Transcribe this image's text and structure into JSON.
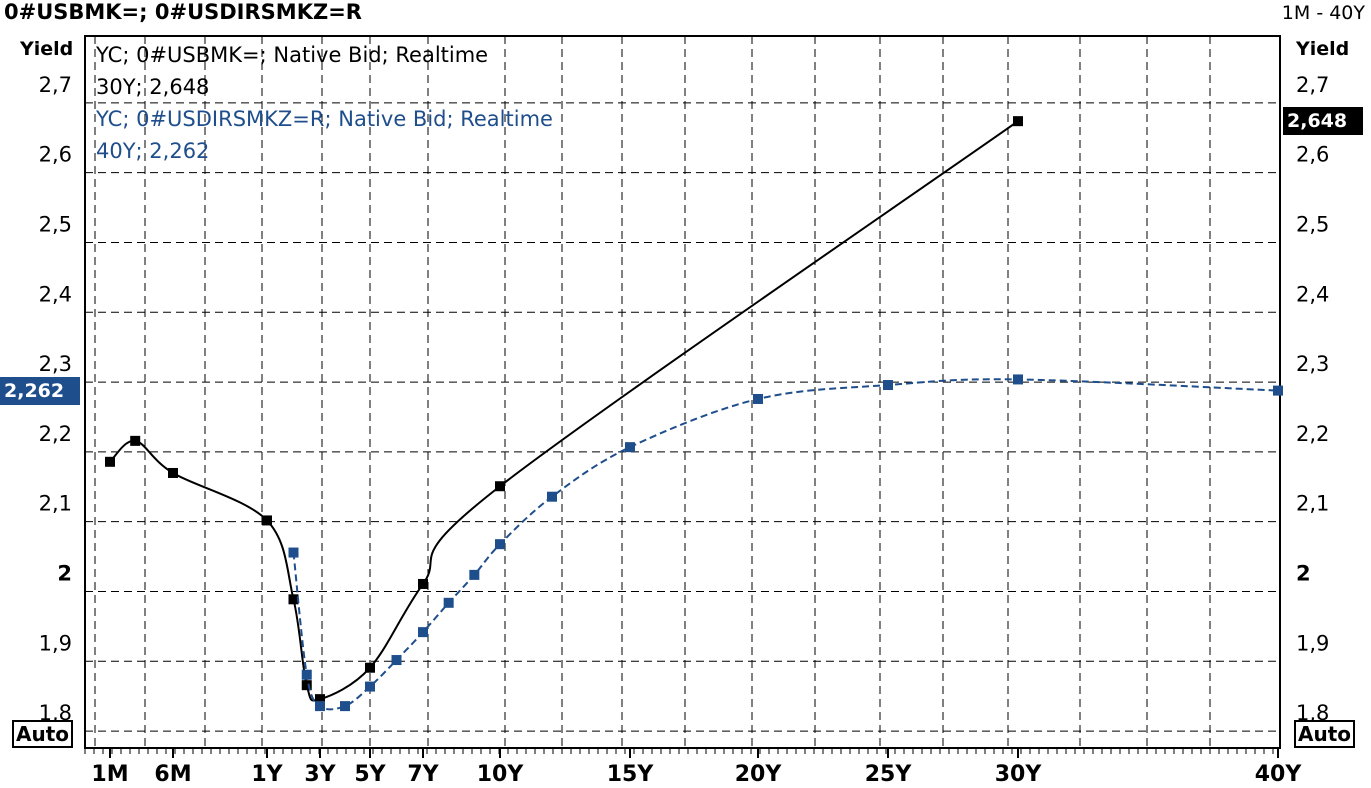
{
  "header": {
    "title": "0#USBMK=; 0#USDIRSMKZ=R",
    "range_label": "1M - 40Y"
  },
  "y_axis_label_left": "Yield",
  "y_axis_label_right": "Yield",
  "auto_left": "Auto",
  "auto_right": "Auto",
  "legend": {
    "series1_line1": "YC; 0#USBMK=; Native Bid; Realtime",
    "series1_line2": "30Y; 2,648",
    "series2_line1": "YC; 0#USDIRSMKZ=R; Native Bid; Realtime",
    "series2_line2": "40Y; 2,262"
  },
  "badges": {
    "left_value": "2,262",
    "right_value": "2,648"
  },
  "colors": {
    "series1": "#000000",
    "series2": "#1f4e8c",
    "badge_left_bg": "#1f4e8c",
    "badge_right_bg": "#000000"
  },
  "chart_data": {
    "type": "line",
    "x_unit": "years",
    "xlim": [
      0,
      40.3
    ],
    "ylim": [
      1.75,
      2.77
    ],
    "y_ticks": [
      {
        "v": 1.8,
        "label": "1,8",
        "bold": false
      },
      {
        "v": 1.9,
        "label": "1,9",
        "bold": false
      },
      {
        "v": 2.0,
        "label": "2",
        "bold": true
      },
      {
        "v": 2.1,
        "label": "2,1",
        "bold": false
      },
      {
        "v": 2.2,
        "label": "2,2",
        "bold": false
      },
      {
        "v": 2.3,
        "label": "2,3",
        "bold": false
      },
      {
        "v": 2.4,
        "label": "2,4",
        "bold": false
      },
      {
        "v": 2.5,
        "label": "2,5",
        "bold": false
      },
      {
        "v": 2.6,
        "label": "2,6",
        "bold": false
      },
      {
        "v": 2.7,
        "label": "2,7",
        "bold": false
      }
    ],
    "x_ticks": [
      {
        "v": 0.0833,
        "label": "1M"
      },
      {
        "v": 0.5,
        "label": "6M"
      },
      {
        "v": 1,
        "label": "1Y"
      },
      {
        "v": 3,
        "label": "3Y"
      },
      {
        "v": 5,
        "label": "5Y"
      },
      {
        "v": 7,
        "label": "7Y"
      },
      {
        "v": 10,
        "label": "10Y"
      },
      {
        "v": 15,
        "label": "15Y"
      },
      {
        "v": 20,
        "label": "20Y"
      },
      {
        "v": 25,
        "label": "25Y"
      },
      {
        "v": 30,
        "label": "30Y"
      },
      {
        "v": 40,
        "label": "40Y"
      }
    ],
    "grid": true,
    "series": [
      {
        "name": "0#USBMK=",
        "style": "solid",
        "points": [
          {
            "t": 0.0833,
            "y": 2.16
          },
          {
            "t": 0.25,
            "y": 2.19
          },
          {
            "t": 0.5,
            "y": 2.144
          },
          {
            "t": 1.0,
            "y": 2.076
          },
          {
            "t": 2.0,
            "y": 1.963
          },
          {
            "t": 2.5,
            "y": 1.84
          },
          {
            "t": 3.0,
            "y": 1.82
          },
          {
            "t": 5.0,
            "y": 1.865
          },
          {
            "t": 7.0,
            "y": 1.985
          },
          {
            "t": 10.0,
            "y": 2.125
          },
          {
            "t": 30.0,
            "y": 2.648
          }
        ]
      },
      {
        "name": "0#USDIRSMKZ=R",
        "style": "dashed",
        "points": [
          {
            "t": 2.0,
            "y": 2.03
          },
          {
            "t": 2.5,
            "y": 1.855
          },
          {
            "t": 3.0,
            "y": 1.81
          },
          {
            "t": 4.0,
            "y": 1.81
          },
          {
            "t": 5.0,
            "y": 1.838
          },
          {
            "t": 6.0,
            "y": 1.876
          },
          {
            "t": 7.0,
            "y": 1.916
          },
          {
            "t": 8.0,
            "y": 1.958
          },
          {
            "t": 9.0,
            "y": 1.998
          },
          {
            "t": 10.0,
            "y": 2.042
          },
          {
            "t": 12.0,
            "y": 2.11
          },
          {
            "t": 15.0,
            "y": 2.181
          },
          {
            "t": 20.0,
            "y": 2.25
          },
          {
            "t": 25.0,
            "y": 2.27
          },
          {
            "t": 30.0,
            "y": 2.278
          },
          {
            "t": 40.0,
            "y": 2.262
          }
        ]
      }
    ]
  }
}
